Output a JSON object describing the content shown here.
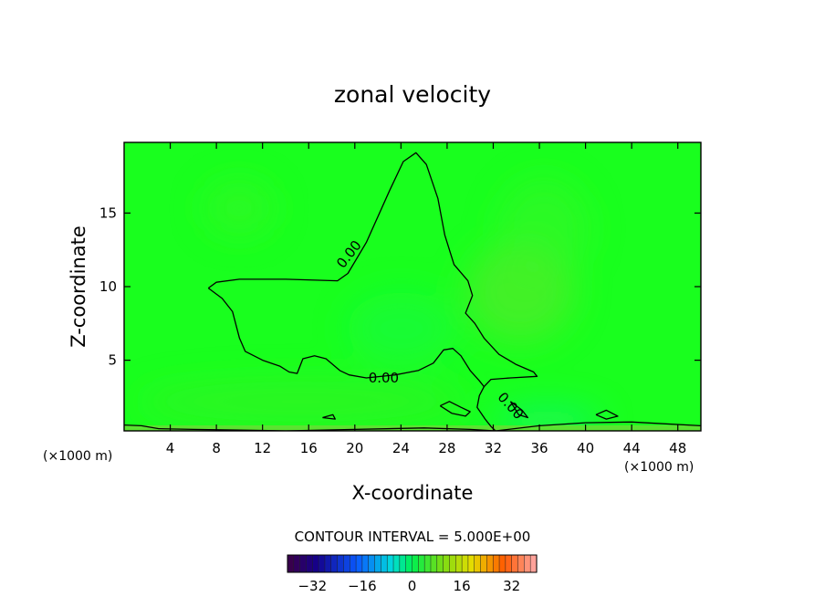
{
  "chart_data": {
    "type": "contour",
    "title": "zonal velocity",
    "xlabel": "X-coordinate",
    "ylabel": "Z-coordinate",
    "x_unit_left": "(×1000 m)",
    "x_unit_right": "(×1000 m)",
    "xlim": [
      0,
      50
    ],
    "ylim": [
      0.2,
      19.8
    ],
    "x_ticks": [
      4,
      8,
      12,
      16,
      20,
      24,
      28,
      32,
      36,
      40,
      44,
      48
    ],
    "y_ticks": [
      5,
      10,
      15
    ],
    "background_color": "#19ff1e",
    "contour_interval_text": "CONTOUR INTERVAL = 5.000E+00",
    "contour_labels": [
      {
        "text": "0.00",
        "x": 19.5,
        "y": 12.2
      },
      {
        "text": "0.00",
        "x": 22.5,
        "y": 3.8
      },
      {
        "text": "0.00",
        "x": 33.5,
        "y": 1.9
      }
    ],
    "contours": [
      {
        "level": 0,
        "points": [
          [
            7.3,
            9.9
          ],
          [
            8,
            10.3
          ],
          [
            10,
            10.5
          ],
          [
            14,
            10.5
          ],
          [
            18.5,
            10.4
          ],
          [
            19.4,
            10.9
          ],
          [
            21,
            13
          ],
          [
            23,
            16.5
          ],
          [
            24.2,
            18.5
          ],
          [
            25.3,
            19.1
          ],
          [
            26.2,
            18.3
          ],
          [
            27.2,
            16
          ],
          [
            27.8,
            13.5
          ],
          [
            28.6,
            11.5
          ],
          [
            29.8,
            10.4
          ],
          [
            30.2,
            9.4
          ],
          [
            29.6,
            8.2
          ],
          [
            30.4,
            7.5
          ],
          [
            31.2,
            6.5
          ],
          [
            32.5,
            5.4
          ],
          [
            34,
            4.7
          ],
          [
            35.5,
            4.2
          ],
          [
            35.8,
            3.9
          ],
          [
            33.5,
            3.8
          ],
          [
            31.8,
            3.7
          ],
          [
            31.2,
            3.2
          ],
          [
            30.8,
            2.6
          ],
          [
            30.6,
            1.8
          ],
          [
            31.3,
            1
          ],
          [
            31.8,
            0.5
          ],
          [
            32.2,
            0.2
          ]
        ]
      },
      {
        "level": 0,
        "points": [
          [
            7.3,
            9.9
          ],
          [
            8.5,
            9.2
          ],
          [
            9.4,
            8.3
          ],
          [
            10,
            6.5
          ],
          [
            10.5,
            5.6
          ],
          [
            12,
            5
          ],
          [
            13.5,
            4.6
          ],
          [
            14.3,
            4.2
          ],
          [
            15,
            4.1
          ],
          [
            15.5,
            5.1
          ],
          [
            16.5,
            5.3
          ],
          [
            17.5,
            5.1
          ],
          [
            18.7,
            4.3
          ],
          [
            19.5,
            4
          ],
          [
            21,
            3.8
          ],
          [
            23.5,
            4
          ],
          [
            25.5,
            4.3
          ],
          [
            26.8,
            4.8
          ],
          [
            27.7,
            5.7
          ],
          [
            28.5,
            5.8
          ],
          [
            29.2,
            5.3
          ],
          [
            30,
            4.3
          ],
          [
            30.8,
            3.6
          ],
          [
            31.2,
            3.2
          ]
        ]
      },
      {
        "level": 0,
        "points": [
          [
            27.4,
            1.9
          ],
          [
            28.2,
            2.2
          ],
          [
            29.2,
            1.8
          ],
          [
            30,
            1.5
          ],
          [
            29.6,
            1.2
          ],
          [
            28.4,
            1.4
          ],
          [
            27.4,
            1.9
          ]
        ]
      },
      {
        "level": 0,
        "points": [
          [
            33.5,
            2.2
          ],
          [
            34.5,
            1.6
          ],
          [
            35,
            1.1
          ],
          [
            34.2,
            1.3
          ],
          [
            33.5,
            2.2
          ]
        ]
      },
      {
        "level": 0,
        "points": [
          [
            40.9,
            1.3
          ],
          [
            41.8,
            1.6
          ],
          [
            42.8,
            1.2
          ],
          [
            41.8,
            1
          ],
          [
            40.9,
            1.3
          ]
        ]
      },
      {
        "level": 0,
        "points": [
          [
            17.2,
            1.1
          ],
          [
            18.1,
            1.3
          ],
          [
            18.3,
            1.0
          ],
          [
            17.2,
            1.1
          ]
        ]
      },
      {
        "level": 0,
        "points": [
          [
            0,
            0.6
          ],
          [
            1.5,
            0.55
          ],
          [
            3,
            0.35
          ],
          [
            6,
            0.3
          ],
          [
            10,
            0.25
          ],
          [
            14,
            0.2
          ],
          [
            20,
            0.3
          ],
          [
            26,
            0.4
          ],
          [
            30,
            0.3
          ],
          [
            32.2,
            0.2
          ],
          [
            36,
            0.55
          ],
          [
            40,
            0.75
          ],
          [
            44,
            0.8
          ],
          [
            50,
            0.55
          ]
        ]
      }
    ],
    "colorbar": {
      "ticks": [
        -32,
        -16,
        0,
        16,
        32
      ],
      "range": [
        -40,
        40
      ]
    }
  }
}
